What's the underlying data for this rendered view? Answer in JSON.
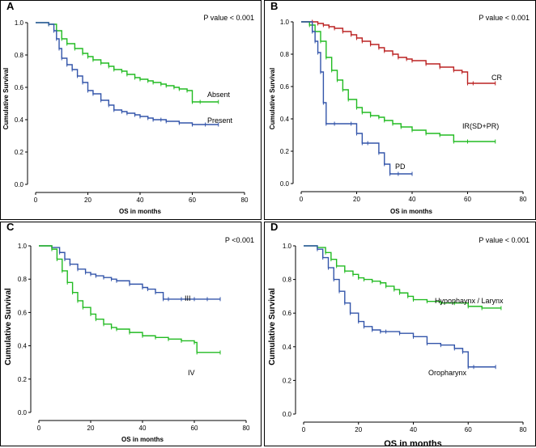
{
  "chart_data": [
    {
      "type": "line",
      "panel": "A",
      "title": "",
      "xlabel": "OS in months",
      "ylabel": "Cumulative Survival",
      "xlim": [
        0,
        80
      ],
      "ylim": [
        0,
        1
      ],
      "xticks": [
        0,
        20,
        40,
        60,
        80
      ],
      "yticks": [
        0.0,
        0.2,
        0.4,
        0.6,
        0.8,
        1.0
      ],
      "annotation": "P value < 0.001",
      "series": [
        {
          "name": "Absent",
          "color": "#22bb22",
          "x": [
            0,
            5,
            8,
            10,
            12,
            15,
            18,
            20,
            22,
            25,
            28,
            30,
            33,
            35,
            38,
            40,
            43,
            45,
            48,
            50,
            53,
            55,
            58,
            60,
            63,
            70
          ],
          "y": [
            1.0,
            0.99,
            0.95,
            0.9,
            0.87,
            0.84,
            0.81,
            0.79,
            0.77,
            0.75,
            0.73,
            0.71,
            0.7,
            0.68,
            0.66,
            0.65,
            0.64,
            0.63,
            0.62,
            0.61,
            0.6,
            0.59,
            0.58,
            0.51,
            0.51,
            0.51
          ]
        },
        {
          "name": "Present",
          "color": "#3355aa",
          "x": [
            0,
            5,
            7,
            8,
            9,
            10,
            12,
            14,
            16,
            18,
            20,
            22,
            25,
            28,
            30,
            33,
            35,
            38,
            40,
            43,
            45,
            48,
            50,
            55,
            60,
            65,
            70
          ],
          "y": [
            1.0,
            0.99,
            0.95,
            0.9,
            0.84,
            0.78,
            0.74,
            0.71,
            0.67,
            0.63,
            0.58,
            0.56,
            0.52,
            0.49,
            0.46,
            0.45,
            0.44,
            0.43,
            0.42,
            0.41,
            0.4,
            0.4,
            0.39,
            0.38,
            0.37,
            0.37,
            0.37
          ]
        }
      ]
    },
    {
      "type": "line",
      "panel": "B",
      "title": "",
      "xlabel": "OS in months",
      "ylabel": "Cumulative Survival",
      "xlim": [
        0,
        80
      ],
      "ylim": [
        0,
        1
      ],
      "xticks": [
        0,
        20,
        40,
        60,
        80
      ],
      "yticks": [
        0.0,
        0.2,
        0.4,
        0.6,
        0.8,
        1.0
      ],
      "annotation": "P value < 0.001",
      "series": [
        {
          "name": "CR",
          "color": "#bb2222",
          "x": [
            0,
            4,
            6,
            8,
            10,
            12,
            15,
            18,
            20,
            22,
            25,
            28,
            30,
            33,
            35,
            38,
            40,
            45,
            50,
            55,
            58,
            60,
            62,
            70
          ],
          "y": [
            1.0,
            1.0,
            0.99,
            0.98,
            0.97,
            0.96,
            0.94,
            0.92,
            0.9,
            0.88,
            0.86,
            0.84,
            0.82,
            0.8,
            0.78,
            0.77,
            0.76,
            0.74,
            0.72,
            0.7,
            0.69,
            0.62,
            0.62,
            0.62
          ]
        },
        {
          "name": "IR(SD+PR)",
          "color": "#22bb22",
          "x": [
            0,
            3,
            5,
            7,
            9,
            11,
            13,
            15,
            17,
            20,
            22,
            25,
            28,
            30,
            33,
            36,
            40,
            45,
            50,
            55,
            60,
            70
          ],
          "y": [
            1.0,
            0.98,
            0.94,
            0.88,
            0.78,
            0.7,
            0.64,
            0.58,
            0.52,
            0.47,
            0.44,
            0.42,
            0.41,
            0.39,
            0.37,
            0.35,
            0.33,
            0.31,
            0.3,
            0.26,
            0.26,
            0.26
          ]
        },
        {
          "name": "PD",
          "color": "#3355aa",
          "x": [
            0,
            4,
            5,
            6,
            7,
            8,
            9,
            12,
            18,
            20,
            22,
            24,
            28,
            30,
            32,
            35,
            40
          ],
          "y": [
            1.0,
            0.94,
            0.88,
            0.81,
            0.69,
            0.5,
            0.37,
            0.37,
            0.37,
            0.31,
            0.25,
            0.25,
            0.19,
            0.12,
            0.06,
            0.06,
            0.06
          ]
        }
      ]
    },
    {
      "type": "line",
      "panel": "C",
      "title": "",
      "xlabel": "OS in months",
      "ylabel": "Cumulative Survival",
      "xlim": [
        0,
        80
      ],
      "ylim": [
        0,
        1
      ],
      "xticks": [
        0,
        20,
        40,
        60,
        80
      ],
      "yticks": [
        0.0,
        0.2,
        0.4,
        0.6,
        0.8,
        1.0
      ],
      "annotation": "P <0.001",
      "series": [
        {
          "name": "III",
          "color": "#3355aa",
          "x": [
            0,
            5,
            8,
            10,
            12,
            15,
            18,
            20,
            22,
            25,
            28,
            30,
            35,
            40,
            42,
            45,
            48,
            50,
            55,
            60,
            65,
            70
          ],
          "y": [
            1.0,
            0.99,
            0.96,
            0.92,
            0.89,
            0.86,
            0.84,
            0.83,
            0.82,
            0.81,
            0.8,
            0.79,
            0.77,
            0.75,
            0.74,
            0.72,
            0.68,
            0.68,
            0.68,
            0.68,
            0.68,
            0.68
          ]
        },
        {
          "name": "IV",
          "color": "#22bb22",
          "x": [
            0,
            5,
            7,
            9,
            11,
            13,
            15,
            17,
            20,
            22,
            25,
            28,
            30,
            35,
            40,
            45,
            50,
            55,
            60,
            61,
            70
          ],
          "y": [
            1.0,
            0.98,
            0.92,
            0.85,
            0.78,
            0.72,
            0.67,
            0.63,
            0.59,
            0.56,
            0.53,
            0.51,
            0.5,
            0.48,
            0.46,
            0.45,
            0.44,
            0.43,
            0.42,
            0.36,
            0.36
          ]
        }
      ]
    },
    {
      "type": "line",
      "panel": "D",
      "title": "",
      "xlabel": "OS in months",
      "ylabel": "Cumulative Survival",
      "xlim": [
        0,
        80
      ],
      "ylim": [
        0,
        1
      ],
      "xticks": [
        0,
        20,
        40,
        60,
        80
      ],
      "yticks": [
        0.0,
        0.2,
        0.4,
        0.6,
        0.8,
        1.0
      ],
      "annotation": "P value < 0.001",
      "series": [
        {
          "name": "Hypophaynx / Larynx",
          "color": "#22bb22",
          "x": [
            0,
            5,
            8,
            10,
            12,
            15,
            18,
            20,
            22,
            25,
            28,
            30,
            33,
            35,
            38,
            40,
            45,
            50,
            55,
            60,
            65,
            72
          ],
          "y": [
            1.0,
            0.99,
            0.96,
            0.92,
            0.88,
            0.85,
            0.83,
            0.81,
            0.8,
            0.79,
            0.78,
            0.76,
            0.74,
            0.72,
            0.7,
            0.68,
            0.67,
            0.66,
            0.66,
            0.64,
            0.63,
            0.63
          ]
        },
        {
          "name": "Oropharynx",
          "color": "#3355aa",
          "x": [
            0,
            5,
            7,
            9,
            11,
            13,
            15,
            17,
            20,
            22,
            25,
            28,
            30,
            35,
            40,
            45,
            50,
            55,
            58,
            60,
            62,
            70
          ],
          "y": [
            1.0,
            0.98,
            0.93,
            0.87,
            0.8,
            0.73,
            0.66,
            0.6,
            0.55,
            0.52,
            0.5,
            0.49,
            0.49,
            0.48,
            0.46,
            0.42,
            0.41,
            0.39,
            0.37,
            0.28,
            0.28,
            0.28
          ]
        }
      ]
    }
  ]
}
